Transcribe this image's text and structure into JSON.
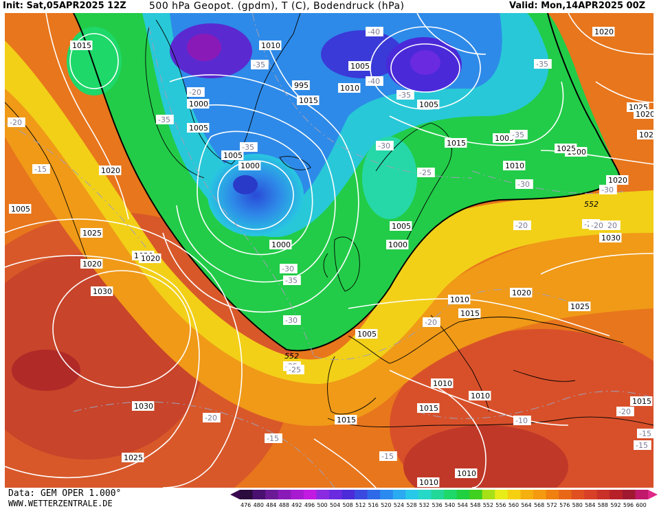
{
  "header": {
    "init": "Init: Sat,05APR2025 12Z",
    "title": "500 hPa Geopot. (gpdm), T (C), Bodendruck (hPa)",
    "valid": "Valid: Mon,14APR2025 00Z"
  },
  "footer": {
    "data_source": "Data: GEM OPER 1.000°",
    "website": "WWW.WETTERZENTRALE.DE"
  },
  "colorbar": {
    "ticks": [
      "476",
      "480",
      "484",
      "488",
      "492",
      "496",
      "500",
      "504",
      "508",
      "512",
      "516",
      "520",
      "524",
      "528",
      "532",
      "536",
      "540",
      "544",
      "548",
      "552",
      "556",
      "560",
      "564",
      "568",
      "572",
      "576",
      "580",
      "584",
      "588",
      "592",
      "596",
      "600"
    ],
    "colors": [
      "#2b0a3d",
      "#4a1070",
      "#6a1a95",
      "#8a1ab8",
      "#a71ad0",
      "#c21ae0",
      "#8a2be2",
      "#6a2ae0",
      "#4b2ad8",
      "#3a4ae0",
      "#2e6ae8",
      "#2a8af0",
      "#2aaaf0",
      "#28c8e8",
      "#26d8c8",
      "#22d898",
      "#1ed86a",
      "#20d040",
      "#40d020",
      "#a8e018",
      "#e8ec18",
      "#f5d010",
      "#f5b010",
      "#f59a10",
      "#f08010",
      "#e86818",
      "#e05020",
      "#d84028",
      "#c83028",
      "#b82028",
      "#a01830",
      "#c0186a"
    ],
    "end_colors": {
      "low": "#3a0850",
      "high": "#e0288a"
    }
  },
  "map": {
    "isobars": [
      "1020",
      "1015",
      "1010",
      "1005",
      "1000",
      "995",
      "1010",
      "1005",
      "1005",
      "1000",
      "1015",
      "1020",
      "1025",
      "1020",
      "1005",
      "1025",
      "1020",
      "1030",
      "1030",
      "1025",
      "1020",
      "1010",
      "1000",
      "1005",
      "1000",
      "1005",
      "1015",
      "1010",
      "1005",
      "1020",
      "1025",
      "1030",
      "1025",
      "1020",
      "1015",
      "1010",
      "1015",
      "1010",
      "1010",
      "1015",
      "1020",
      "1020",
      "1010",
      "1005",
      "1000",
      "1015"
    ],
    "temperature_labels": [
      "-40",
      "-35",
      "-20",
      "-35",
      "-30",
      "-35",
      "-40",
      "-35",
      "-30",
      "-25",
      "-20",
      "-15",
      "-20",
      "-20",
      "-25",
      "-30",
      "-30",
      "-35",
      "-35",
      "-25",
      "-20",
      "-30",
      "-35",
      "-25",
      "-20",
      "-15",
      "-10",
      "-15",
      "-15",
      "-20",
      "-15",
      "-20"
    ],
    "contour_552_label": "552"
  }
}
